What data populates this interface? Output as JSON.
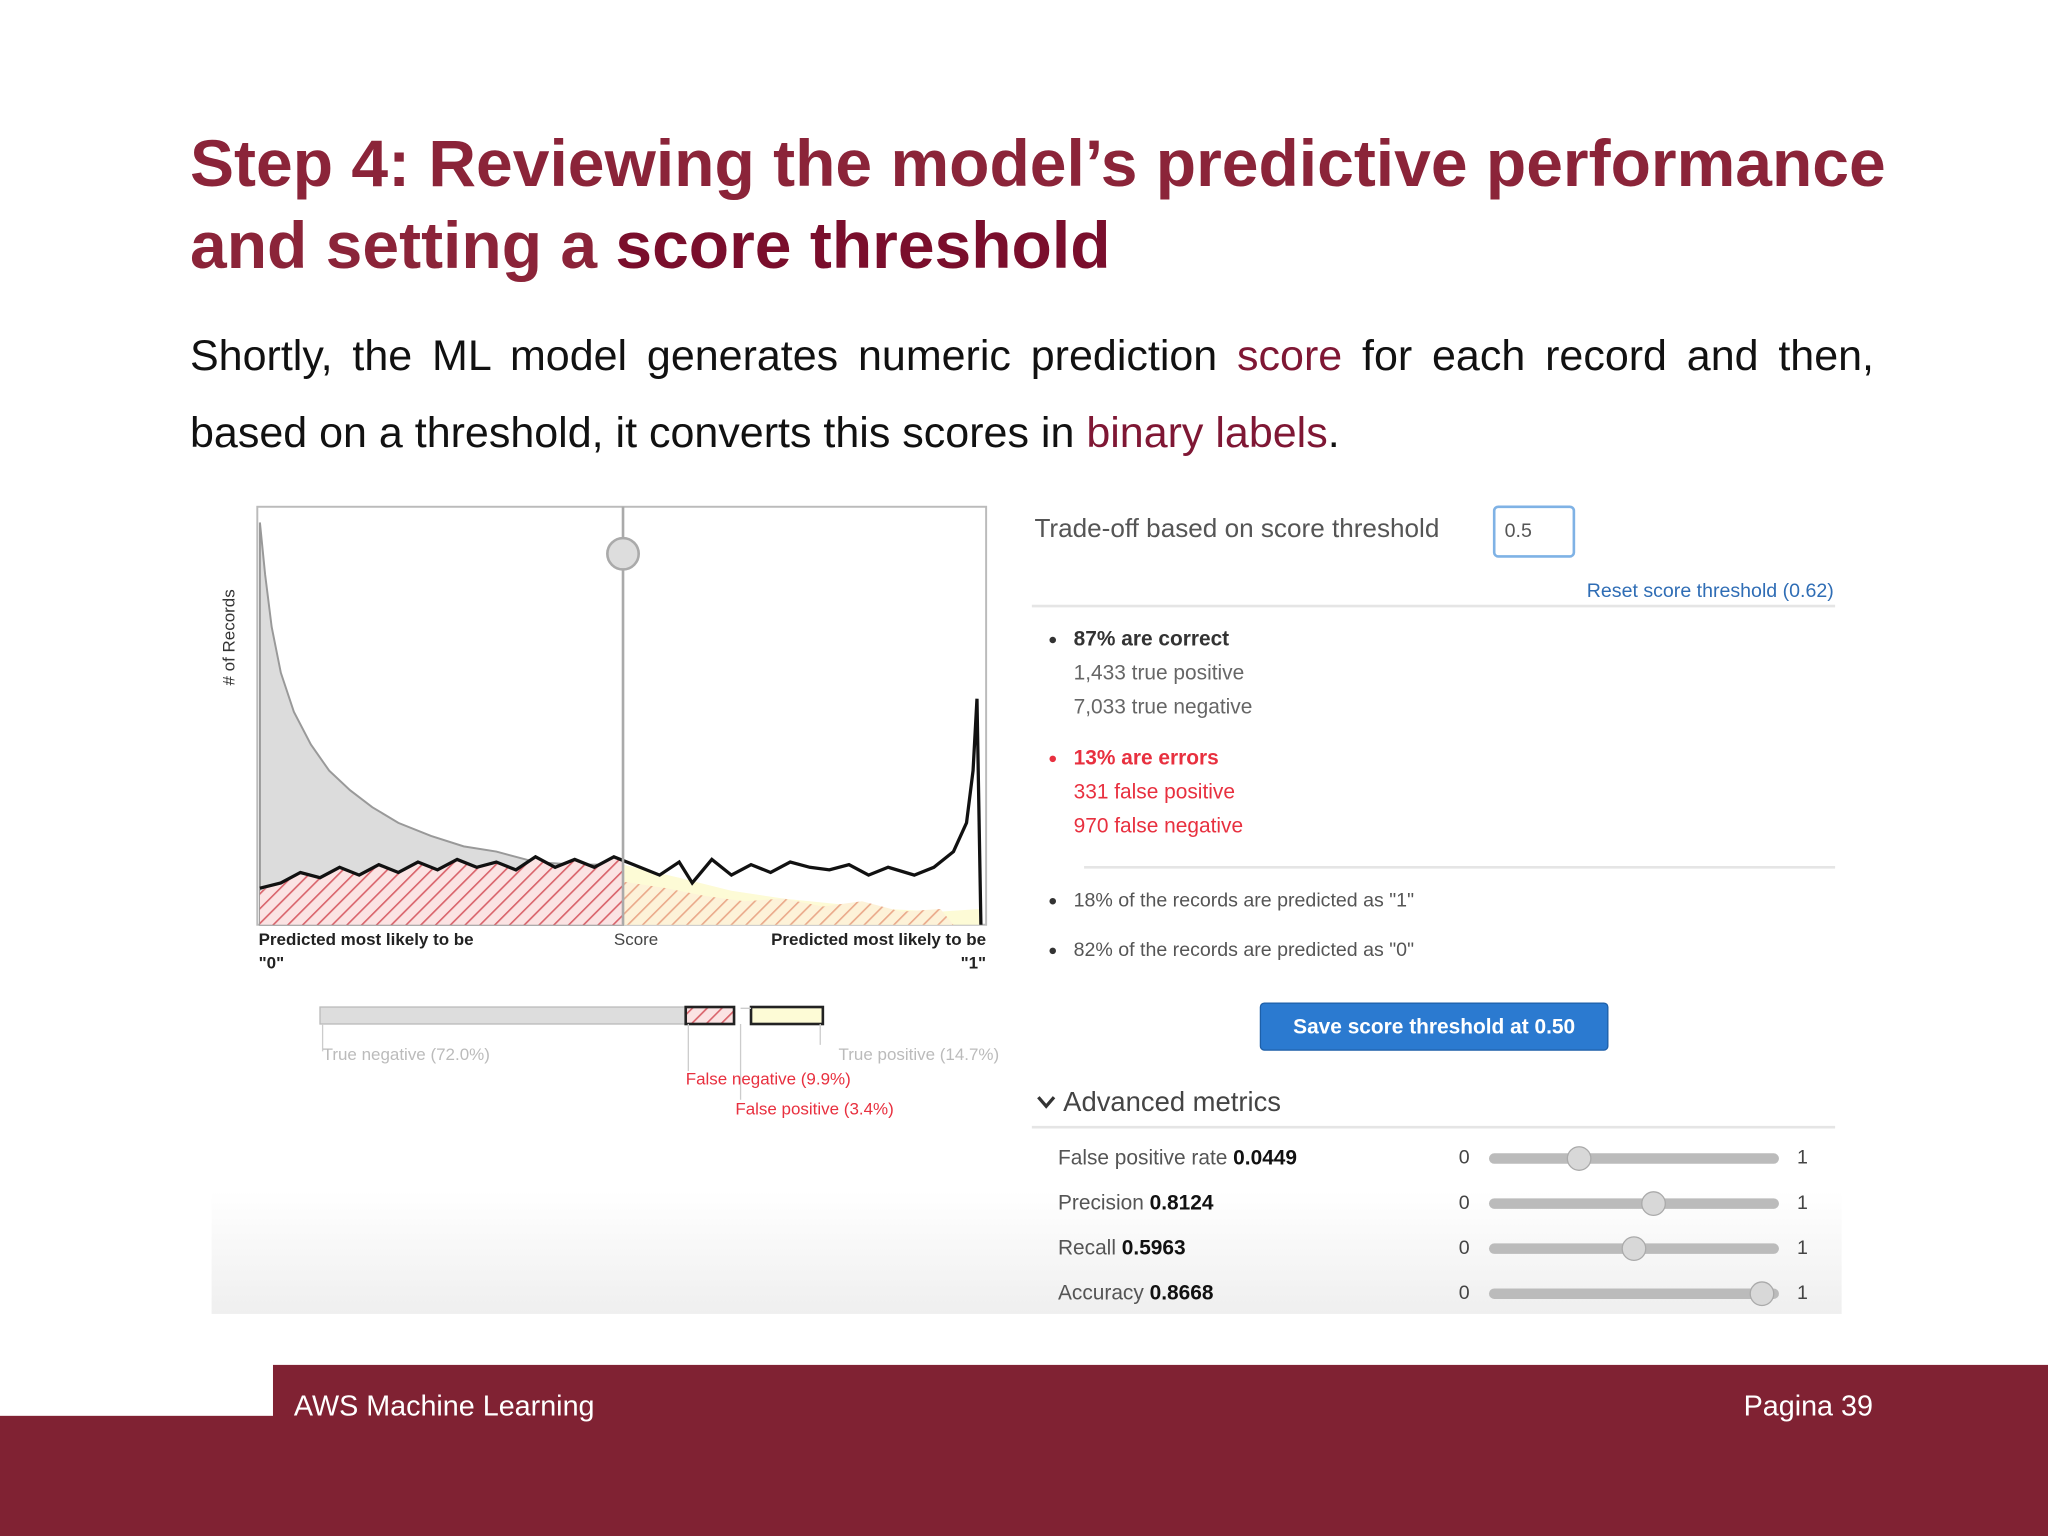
{
  "header": {
    "title": "Step 4: Reviewing the model’s predictive performance and setting a ",
    "title_emphasis": "score threshold"
  },
  "body": {
    "parts": [
      "Shortly, the ML model generates numeric prediction ",
      "score",
      " for each record and then, based on a threshold, it converts this scores in ",
      "binary labels",
      "."
    ]
  },
  "screenshot": {
    "histogram": {
      "y_axis_label": "# of Records",
      "left_label": [
        "Predicted most likely to be",
        "\"0\""
      ],
      "center_label": "Score",
      "right_label": [
        "Predicted most likely to be",
        "\"1\""
      ]
    },
    "legend": {
      "true_negative": "True negative (72.0%)",
      "false_negative": "False negative (9.9%)",
      "false_positive": "False positive (3.4%)",
      "true_positive": "True positive (14.7%)"
    },
    "panel": {
      "tradeoff_label": "Trade-off based on score threshold",
      "threshold_input": "0.5",
      "reset_link": "Reset score threshold (0.62)",
      "correct": {
        "heading": "87% are correct",
        "lines": [
          "1,433 true positive",
          "7,033 true negative"
        ]
      },
      "errors": {
        "heading": "13% are errors",
        "lines": [
          "331 false positive",
          "970 false negative"
        ]
      },
      "predicted": [
        "18% of the records are predicted as \"1\"",
        "82% of the records are predicted as \"0\""
      ],
      "save_button": "Save score threshold at 0.50",
      "advanced_heading": "Advanced metrics",
      "metrics": [
        {
          "name": "False positive rate",
          "value": "0.0449",
          "min": "0",
          "max": "1"
        },
        {
          "name": "Precision",
          "value": "0.8124",
          "min": "0",
          "max": "1"
        },
        {
          "name": "Recall",
          "value": "0.5963",
          "min": "0",
          "max": "1"
        },
        {
          "name": "Accuracy",
          "value": "0.8668",
          "min": "0",
          "max": "1"
        }
      ]
    }
  },
  "footer": {
    "left": "AWS Machine Learning",
    "right": "Pagina 39"
  }
}
